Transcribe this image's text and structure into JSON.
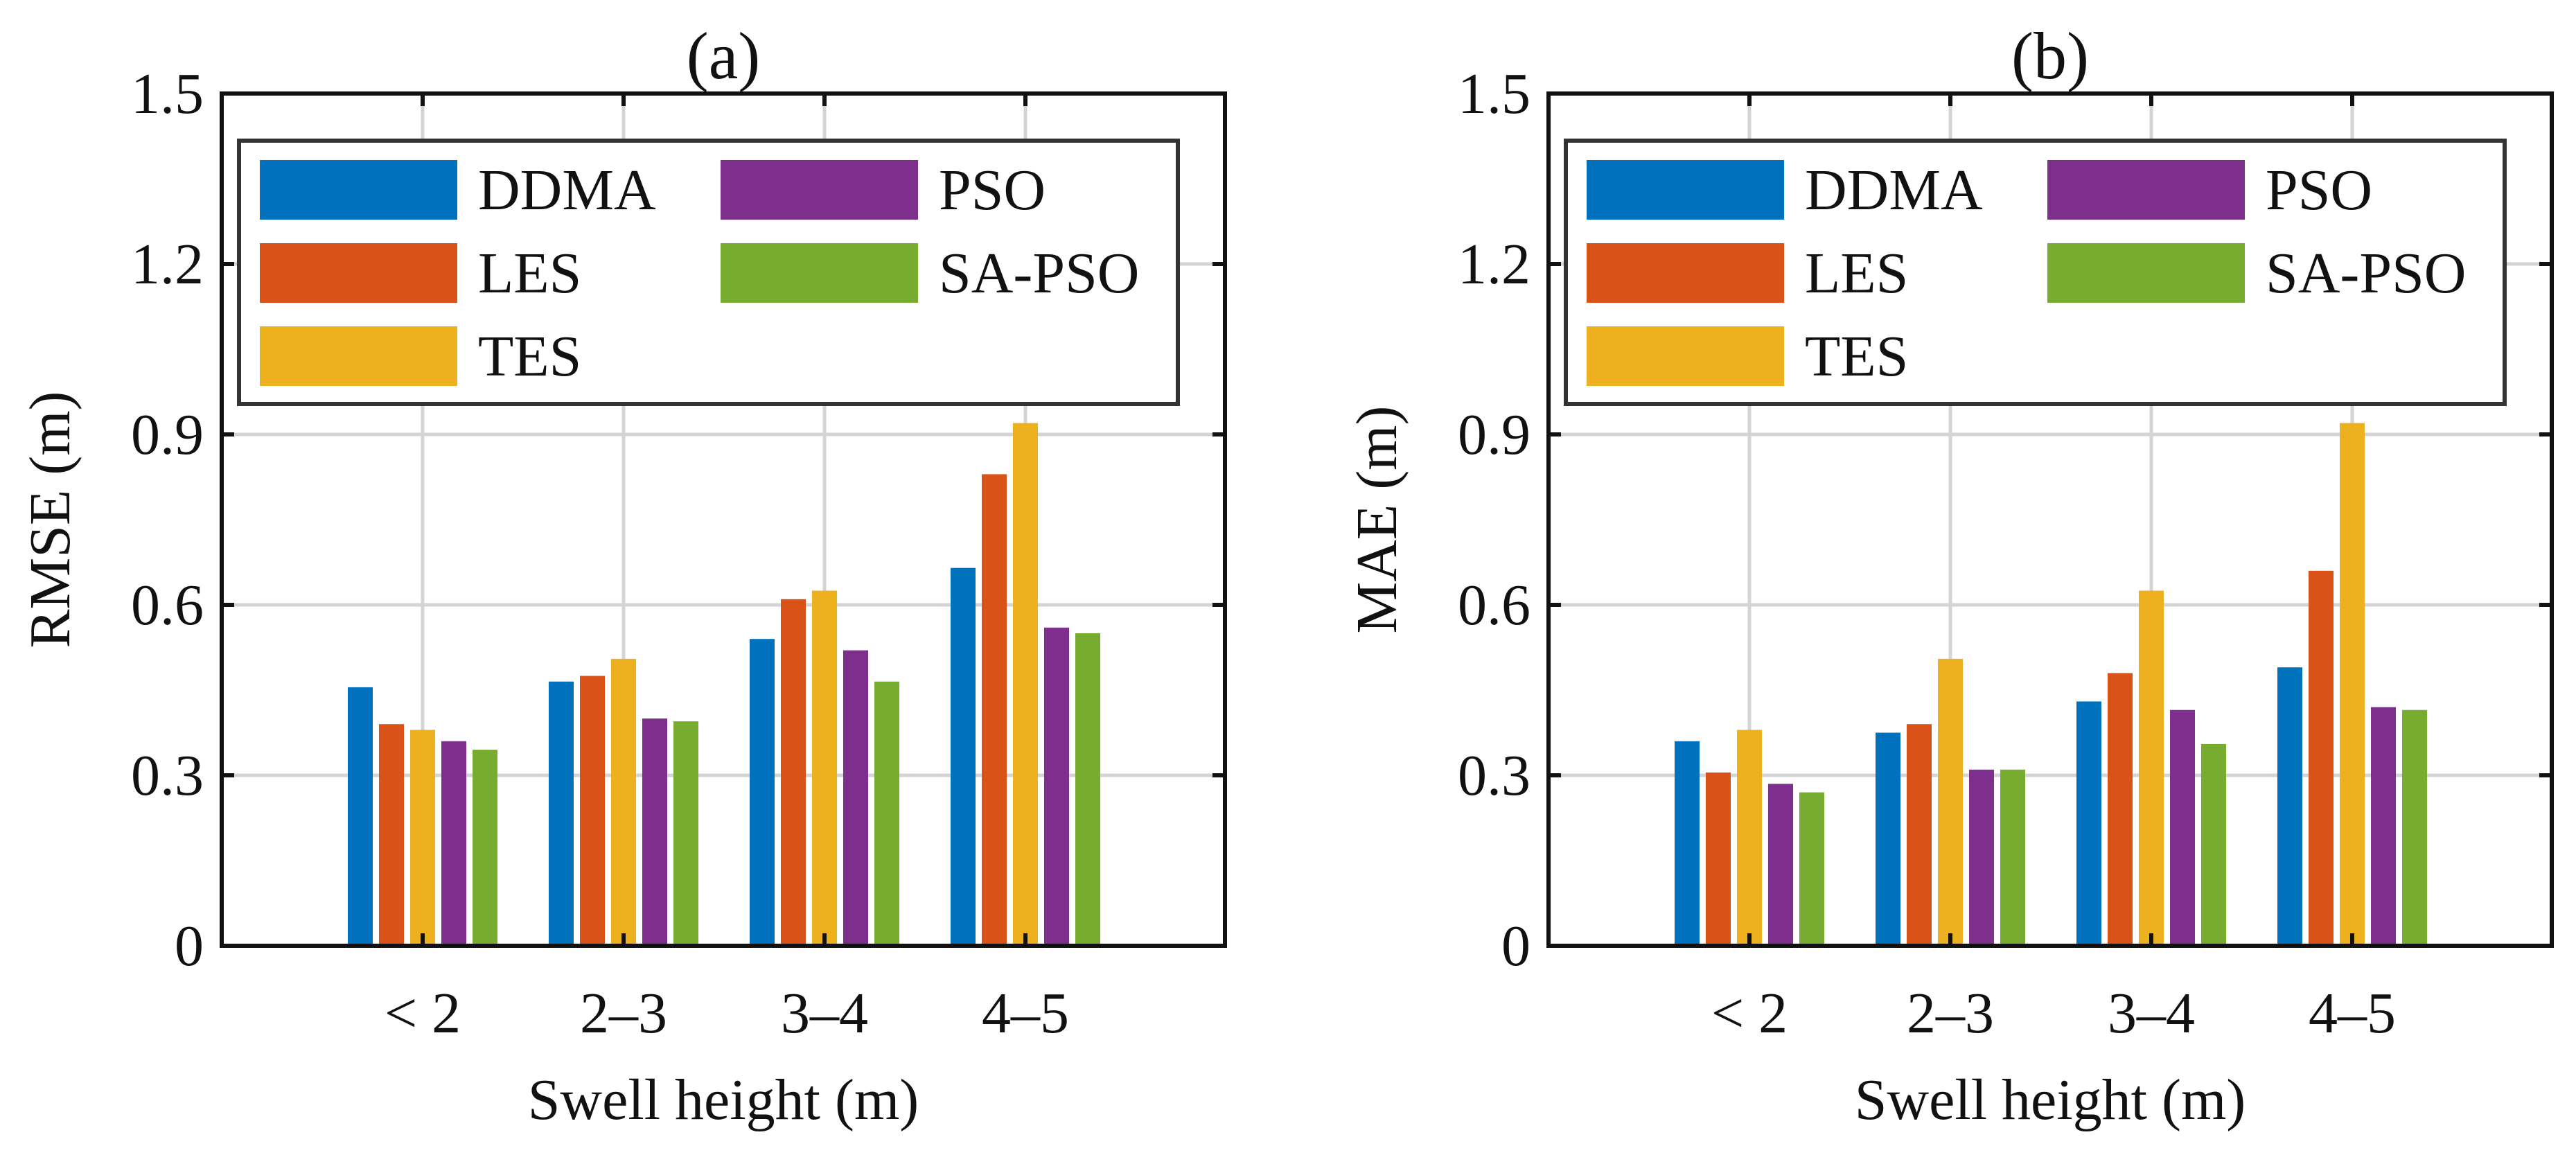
{
  "chart_data": [
    {
      "type": "bar",
      "title": "(a)",
      "xlabel": "Swell height (m)",
      "ylabel": "RMSE (m)",
      "ylim": [
        0,
        1.5
      ],
      "yticks": [
        "0",
        "0.3",
        "0.6",
        "0.9",
        "1.2",
        "1.5"
      ],
      "ytick_values": [
        0,
        0.3,
        0.6,
        0.9,
        1.2,
        1.5
      ],
      "categories": [
        "< 2",
        "2–3",
        "3–4",
        "4–5"
      ],
      "grid": true,
      "legend_position": "top",
      "series": [
        {
          "name": "DDMA",
          "color": "#0072BD",
          "values": [
            0.455,
            0.465,
            0.54,
            0.665
          ]
        },
        {
          "name": "LES",
          "color": "#D95319",
          "values": [
            0.39,
            0.475,
            0.61,
            0.83
          ]
        },
        {
          "name": "TES",
          "color": "#EDB120",
          "values": [
            0.38,
            0.505,
            0.625,
            0.92
          ]
        },
        {
          "name": "PSO",
          "color": "#7E2F8E",
          "values": [
            0.36,
            0.4,
            0.52,
            0.56
          ]
        },
        {
          "name": "SA-PSO",
          "color": "#77AC30",
          "values": [
            0.345,
            0.395,
            0.465,
            0.55
          ]
        }
      ]
    },
    {
      "type": "bar",
      "title": "(b)",
      "xlabel": "Swell height (m)",
      "ylabel": "MAE (m)",
      "ylim": [
        0,
        1.5
      ],
      "yticks": [
        "0",
        "0.3",
        "0.6",
        "0.9",
        "1.2",
        "1.5"
      ],
      "ytick_values": [
        0,
        0.3,
        0.6,
        0.9,
        1.2,
        1.5
      ],
      "categories": [
        "< 2",
        "2–3",
        "3–4",
        "4–5"
      ],
      "grid": true,
      "legend_position": "top",
      "series": [
        {
          "name": "DDMA",
          "color": "#0072BD",
          "values": [
            0.36,
            0.375,
            0.43,
            0.49
          ]
        },
        {
          "name": "LES",
          "color": "#D95319",
          "values": [
            0.305,
            0.39,
            0.48,
            0.66
          ]
        },
        {
          "name": "TES",
          "color": "#EDB120",
          "values": [
            0.38,
            0.505,
            0.625,
            0.92
          ]
        },
        {
          "name": "PSO",
          "color": "#7E2F8E",
          "values": [
            0.285,
            0.31,
            0.415,
            0.42
          ]
        },
        {
          "name": "SA-PSO",
          "color": "#77AC30",
          "values": [
            0.27,
            0.31,
            0.355,
            0.415
          ]
        }
      ]
    }
  ]
}
